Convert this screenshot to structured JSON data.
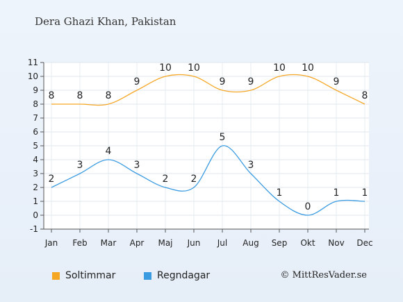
{
  "title": "Dera Ghazi Khan, Pakistan",
  "credit": "© MittResVader.se",
  "chart_data": {
    "type": "line",
    "categories": [
      "Jan",
      "Feb",
      "Mar",
      "Apr",
      "Maj",
      "Jun",
      "Jul",
      "Aug",
      "Sep",
      "Okt",
      "Nov",
      "Dec"
    ],
    "ylim": [
      -1,
      11
    ],
    "yticks": [
      -1,
      0,
      1,
      2,
      3,
      4,
      5,
      6,
      7,
      8,
      9,
      10,
      11
    ],
    "grid": true,
    "legend_position": "bottom-left",
    "series": [
      {
        "name": "Soltimmar",
        "color": "#f5a623",
        "values": [
          8,
          8,
          8,
          9,
          10,
          10,
          9,
          9,
          10,
          10,
          9,
          8
        ]
      },
      {
        "name": "Regndagar",
        "color": "#3a9be0",
        "values": [
          2,
          3,
          4,
          3,
          2,
          2,
          5,
          3,
          1,
          0,
          1,
          1
        ]
      }
    ]
  }
}
